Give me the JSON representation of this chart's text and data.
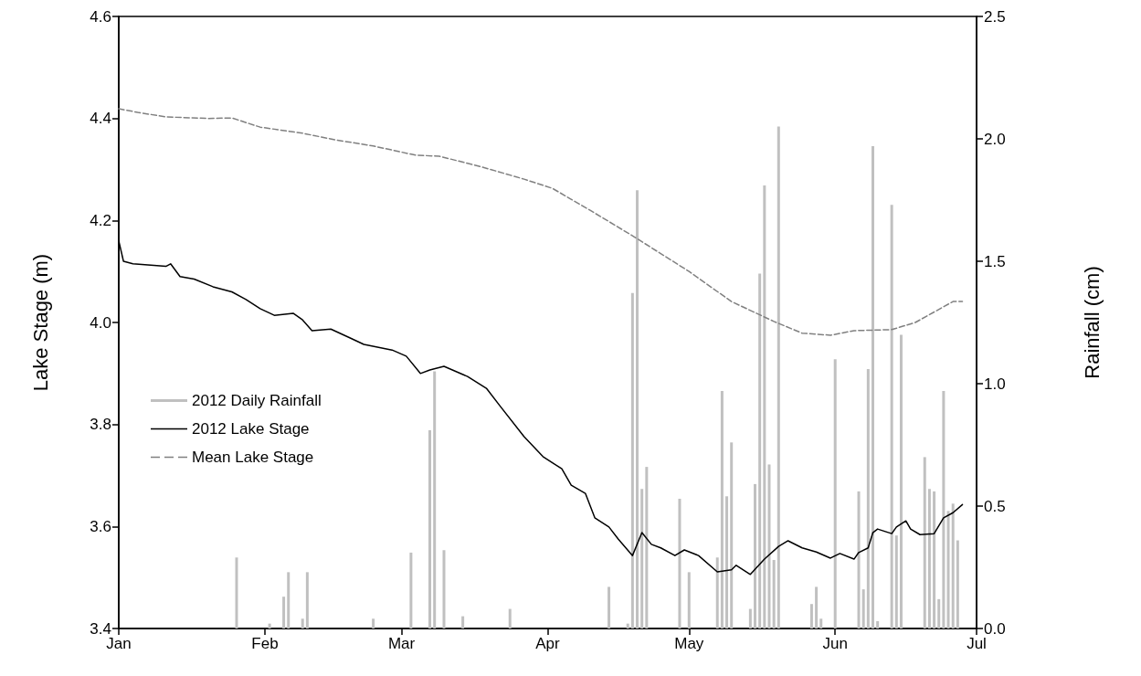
{
  "chart_data": {
    "type": "line",
    "xlabel": null,
    "ylabel": "Lake Stage (m)",
    "y2label": "Rainfall (cm)",
    "xlim": [
      "2012-01-01",
      "2012-07-01"
    ],
    "xticks": [
      {
        "value": "2012-01-01",
        "label": "Jan"
      },
      {
        "value": "2012-02-01",
        "label": "Feb"
      },
      {
        "value": "2012-03-01",
        "label": "Mar"
      },
      {
        "value": "2012-04-01",
        "label": "Apr"
      },
      {
        "value": "2012-05-01",
        "label": "May"
      },
      {
        "value": "2012-06-01",
        "label": "Jun"
      },
      {
        "value": "2012-07-01",
        "label": "Jul"
      }
    ],
    "ylim": [
      3.4,
      4.6
    ],
    "yticks": [
      3.4,
      3.6,
      3.8,
      {
        "value": 4,
        "label": "4.0"
      },
      4.2,
      4.4,
      4.6
    ],
    "y2lim": [
      0,
      2.5
    ],
    "y2ticks": [
      {
        "value": 0,
        "label": "0.0"
      },
      0.5,
      {
        "value": 1,
        "label": "1.0"
      },
      1.5,
      {
        "value": 2,
        "label": "2.0"
      },
      2.5
    ],
    "legend": "left",
    "marker": "none",
    "series": [
      {
        "name": "2012 Daily Rainfall",
        "type": "bar",
        "axis": "y2",
        "color": "#c0c0c0",
        "x": [
          "2012-01-26",
          "2012-02-02",
          "2012-02-05",
          "2012-02-06",
          "2012-02-09",
          "2012-02-10",
          "2012-02-24",
          "2012-03-03",
          "2012-03-07",
          "2012-03-08",
          "2012-03-10",
          "2012-03-14",
          "2012-03-24",
          "2012-04-14",
          "2012-04-18",
          "2012-04-19",
          "2012-04-20",
          "2012-04-21",
          "2012-04-22",
          "2012-04-29",
          "2012-05-01",
          "2012-05-07",
          "2012-05-08",
          "2012-05-09",
          "2012-05-10",
          "2012-05-14",
          "2012-05-15",
          "2012-05-16",
          "2012-05-17",
          "2012-05-18",
          "2012-05-19",
          "2012-05-20",
          "2012-05-27",
          "2012-05-28",
          "2012-05-29",
          "2012-06-01",
          "2012-06-06",
          "2012-06-07",
          "2012-06-08",
          "2012-06-09",
          "2012-06-10",
          "2012-06-13",
          "2012-06-14",
          "2012-06-15",
          "2012-06-20",
          "2012-06-21",
          "2012-06-22",
          "2012-06-23",
          "2012-06-24",
          "2012-06-25",
          "2012-06-26",
          "2012-06-27"
        ],
        "values": [
          0.29,
          0.02,
          0.13,
          0.23,
          0.04,
          0.23,
          0.04,
          0.31,
          0.81,
          1.05,
          0.32,
          0.05,
          0.08,
          0.17,
          0.02,
          1.37,
          1.79,
          0.57,
          0.66,
          0.53,
          0.23,
          0.29,
          0.97,
          0.54,
          0.76,
          0.08,
          0.59,
          1.45,
          1.81,
          0.67,
          0.28,
          2.05,
          0.1,
          0.17,
          0.04,
          1.1,
          0.56,
          0.16,
          1.06,
          1.97,
          0.03,
          1.73,
          0.38,
          1.2,
          0.7,
          0.57,
          0.56,
          0.12,
          0.97,
          0.48,
          0.51,
          0.36
        ]
      },
      {
        "name": "2012 Lake Stage",
        "color": "#000000",
        "line_style": "solid",
        "x": [
          "2012-01-01",
          "2012-01-02",
          "2012-01-04",
          "2012-01-11",
          "2012-01-12",
          "2012-01-14",
          "2012-01-17",
          "2012-01-21",
          "2012-01-25",
          "2012-01-28",
          "2012-01-31",
          "2012-02-03",
          "2012-02-07",
          "2012-02-09",
          "2012-02-11",
          "2012-02-15",
          "2012-02-19",
          "2012-02-22",
          "2012-02-28",
          "2012-03-02",
          "2012-03-05",
          "2012-03-07",
          "2012-03-10",
          "2012-03-15",
          "2012-03-19",
          "2012-03-22",
          "2012-03-27",
          "2012-03-31",
          "2012-04-04",
          "2012-04-06",
          "2012-04-09",
          "2012-04-11",
          "2012-04-14",
          "2012-04-16",
          "2012-04-19",
          "2012-04-21",
          "2012-04-23",
          "2012-04-25",
          "2012-04-28",
          "2012-04-30",
          "2012-05-03",
          "2012-05-07",
          "2012-05-10",
          "2012-05-11",
          "2012-05-14",
          "2012-05-17",
          "2012-05-20",
          "2012-05-22",
          "2012-05-25",
          "2012-05-28",
          "2012-05-31",
          "2012-06-02",
          "2012-06-05",
          "2012-06-06",
          "2012-06-08",
          "2012-06-09",
          "2012-06-10",
          "2012-06-13",
          "2012-06-14",
          "2012-06-16",
          "2012-06-17",
          "2012-06-19",
          "2012-06-22",
          "2012-06-24",
          "2012-06-26",
          "2012-06-28"
        ],
        "values": [
          4.16,
          4.12,
          4.115,
          4.11,
          4.115,
          4.09,
          4.085,
          4.07,
          4.06,
          4.045,
          4.027,
          4.014,
          4.018,
          4.005,
          3.984,
          3.987,
          3.97,
          3.957,
          3.946,
          3.934,
          3.9,
          3.907,
          3.914,
          3.894,
          3.871,
          3.835,
          3.776,
          3.737,
          3.713,
          3.681,
          3.665,
          3.617,
          3.599,
          3.575,
          3.543,
          3.588,
          3.565,
          3.558,
          3.543,
          3.554,
          3.543,
          3.511,
          3.515,
          3.524,
          3.506,
          3.536,
          3.561,
          3.572,
          3.558,
          3.55,
          3.538,
          3.547,
          3.536,
          3.549,
          3.558,
          3.588,
          3.595,
          3.586,
          3.599,
          3.611,
          3.595,
          3.584,
          3.586,
          3.617,
          3.627,
          3.643
        ]
      },
      {
        "name": "Mean Lake Stage",
        "color": "#808080",
        "line_style": "dashed",
        "x": [
          "2012-01-01",
          "2012-01-05",
          "2012-01-11",
          "2012-01-20",
          "2012-01-25",
          "2012-01-31",
          "2012-02-09",
          "2012-02-16",
          "2012-02-24",
          "2012-03-04",
          "2012-03-09",
          "2012-03-18",
          "2012-03-27",
          "2012-04-02",
          "2012-04-10",
          "2012-04-19",
          "2012-05-01",
          "2012-05-10",
          "2012-05-19",
          "2012-05-25",
          "2012-05-31",
          "2012-06-05",
          "2012-06-13",
          "2012-06-18",
          "2012-06-26",
          "2012-06-28"
        ],
        "values": [
          4.419,
          4.412,
          4.403,
          4.4,
          4.401,
          4.383,
          4.371,
          4.358,
          4.346,
          4.328,
          4.326,
          4.305,
          4.281,
          4.263,
          4.22,
          4.17,
          4.1,
          4.041,
          4.002,
          3.979,
          3.975,
          3.984,
          3.986,
          4.0,
          4.041,
          4.041
        ]
      }
    ]
  }
}
